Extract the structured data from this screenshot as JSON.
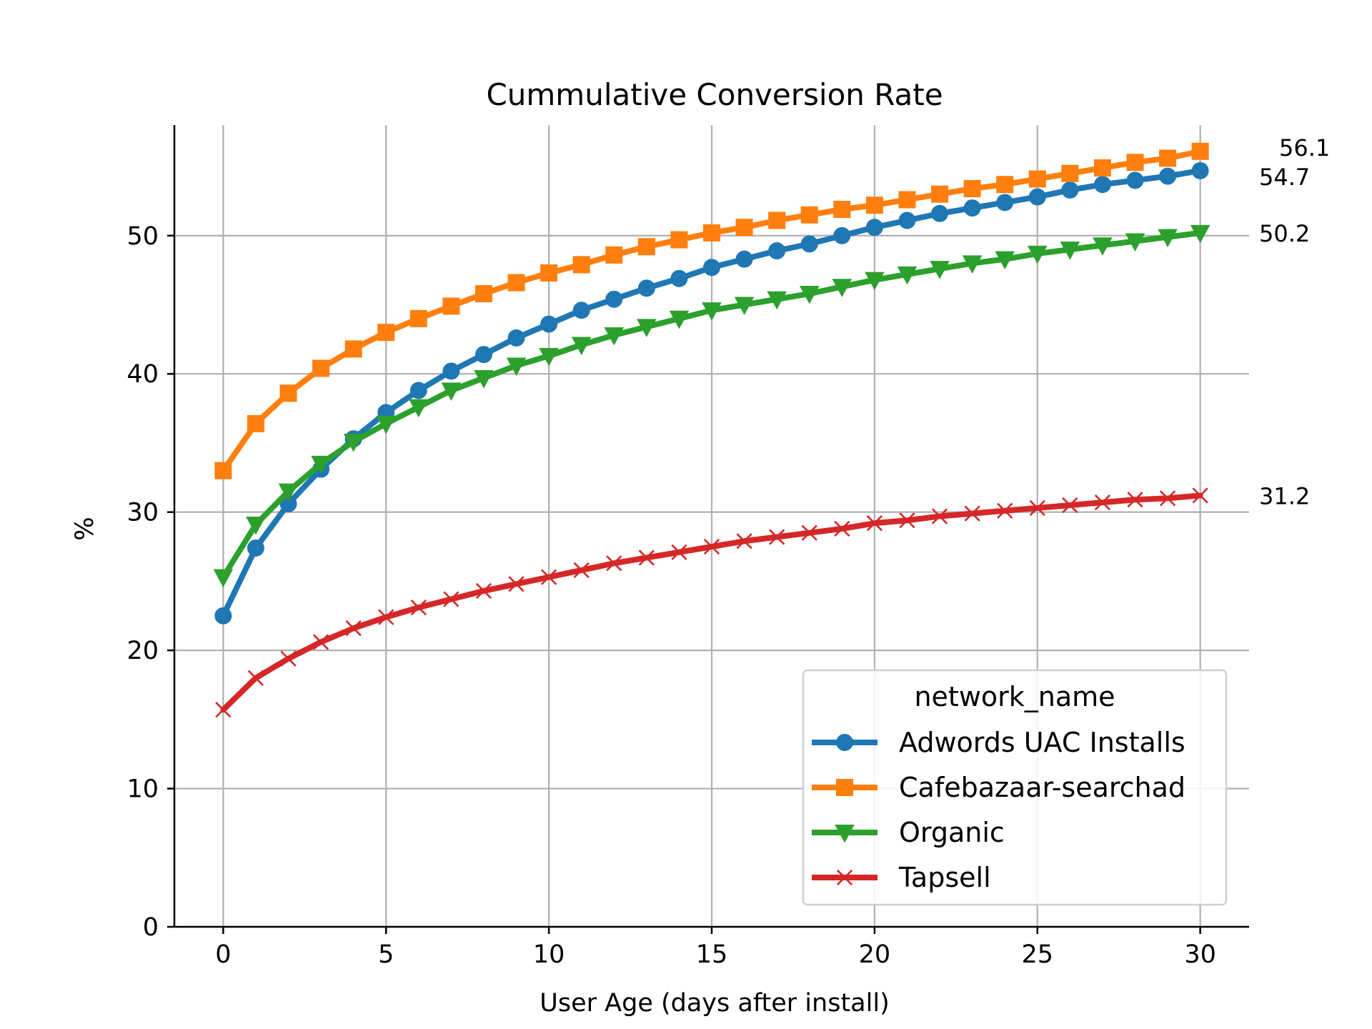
{
  "chart_data": {
    "type": "line",
    "title": "Cummulative Conversion Rate",
    "xlabel": "User Age (days after install)",
    "ylabel": "%",
    "xlim": [
      -1.5,
      31.5
    ],
    "ylim": [
      0,
      58
    ],
    "x_ticks": [
      0,
      5,
      10,
      15,
      20,
      25,
      30
    ],
    "y_ticks": [
      0,
      10,
      20,
      30,
      40,
      50
    ],
    "grid": true,
    "legend": {
      "title": "network_name",
      "position": "lower-right"
    },
    "x": [
      0,
      1,
      2,
      3,
      4,
      5,
      6,
      7,
      8,
      9,
      10,
      11,
      12,
      13,
      14,
      15,
      16,
      17,
      18,
      19,
      20,
      21,
      22,
      23,
      24,
      25,
      26,
      27,
      28,
      29,
      30
    ],
    "series": [
      {
        "name": "Adwords UAC Installs",
        "color": "#1f77b4",
        "marker": "circle",
        "end_label": "54.7",
        "values": [
          22.5,
          27.4,
          30.6,
          33.1,
          35.3,
          37.2,
          38.8,
          40.2,
          41.4,
          42.6,
          43.6,
          44.6,
          45.4,
          46.2,
          46.9,
          47.7,
          48.3,
          48.9,
          49.4,
          50.0,
          50.6,
          51.1,
          51.6,
          52.0,
          52.4,
          52.8,
          53.3,
          53.7,
          54.0,
          54.3,
          54.7
        ]
      },
      {
        "name": "Cafebazaar-searchad",
        "color": "#ff7f0e",
        "marker": "square",
        "end_label": "56.1",
        "values": [
          33.0,
          36.4,
          38.6,
          40.4,
          41.8,
          43.0,
          44.0,
          44.9,
          45.8,
          46.6,
          47.3,
          47.9,
          48.6,
          49.2,
          49.7,
          50.2,
          50.6,
          51.1,
          51.5,
          51.9,
          52.2,
          52.6,
          53.0,
          53.4,
          53.7,
          54.1,
          54.5,
          54.9,
          55.3,
          55.6,
          56.1
        ]
      },
      {
        "name": "Organic",
        "color": "#2ca02c",
        "marker": "triangle-down",
        "end_label": "50.2",
        "values": [
          25.3,
          29.1,
          31.5,
          33.5,
          35.1,
          36.4,
          37.6,
          38.8,
          39.7,
          40.6,
          41.3,
          42.1,
          42.8,
          43.4,
          44.0,
          44.6,
          45.0,
          45.4,
          45.8,
          46.3,
          46.8,
          47.2,
          47.6,
          48.0,
          48.3,
          48.7,
          49.0,
          49.3,
          49.6,
          49.9,
          50.2
        ]
      },
      {
        "name": "Tapsell",
        "color": "#d62728",
        "marker": "x",
        "end_label": "31.2",
        "values": [
          15.7,
          18.0,
          19.4,
          20.6,
          21.6,
          22.4,
          23.1,
          23.7,
          24.3,
          24.8,
          25.3,
          25.8,
          26.3,
          26.7,
          27.1,
          27.5,
          27.9,
          28.2,
          28.5,
          28.8,
          29.2,
          29.4,
          29.7,
          29.9,
          30.1,
          30.3,
          30.5,
          30.7,
          30.9,
          31.0,
          31.2
        ]
      }
    ]
  }
}
